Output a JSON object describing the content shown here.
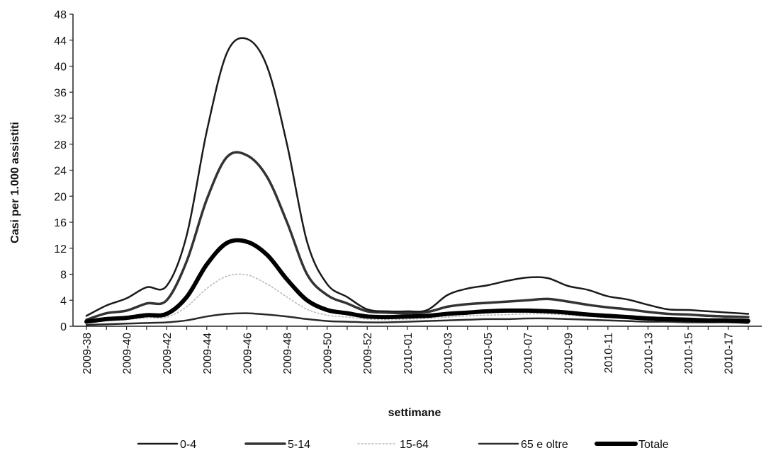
{
  "chart_data": {
    "type": "line",
    "xlabel": "settimane",
    "ylabel": "Casi per 1.000 assistiti",
    "ylim": [
      0,
      48
    ],
    "y_ticks": [
      "0",
      "4",
      "8",
      "12",
      "16",
      "20",
      "24",
      "28",
      "32",
      "36",
      "40",
      "44",
      "48"
    ],
    "grid": false,
    "legend_position": "bottom",
    "x": [
      "2009-38",
      "2009-39",
      "2009-40",
      "2009-41",
      "2009-42",
      "2009-43",
      "2009-44",
      "2009-45",
      "2009-46",
      "2009-47",
      "2009-48",
      "2009-49",
      "2009-50",
      "2009-51",
      "2009-52",
      "2009-53",
      "2010-01",
      "2010-02",
      "2010-03",
      "2010-04",
      "2010-05",
      "2010-06",
      "2010-07",
      "2010-08",
      "2010-09",
      "2010-10",
      "2010-11",
      "2010-12",
      "2010-13",
      "2010-14",
      "2010-15",
      "2010-16",
      "2010-17",
      "2010-18"
    ],
    "x_tick_labels": [
      "2009-38",
      "2009-40",
      "2009-42",
      "2009-44",
      "2009-46",
      "2009-48",
      "2009-50",
      "2009-52",
      "2010-01",
      "2010-03",
      "2010-05",
      "2010-07",
      "2010-09",
      "2010-11",
      "2010-13",
      "2010-15",
      "2010-17"
    ],
    "series": [
      {
        "name": "0-4",
        "color": "#1a1a1a",
        "width": 2.5,
        "dash": "",
        "values": [
          1.6,
          3.2,
          4.3,
          6.0,
          6.2,
          14.0,
          30.0,
          42.0,
          44.2,
          40.0,
          28.0,
          13.0,
          6.5,
          4.5,
          2.6,
          2.3,
          2.3,
          2.5,
          4.8,
          5.8,
          6.3,
          7.0,
          7.5,
          7.4,
          6.2,
          5.6,
          4.6,
          4.1,
          3.3,
          2.6,
          2.5,
          2.3,
          2.1,
          1.9
        ]
      },
      {
        "name": "5-14",
        "color": "#333333",
        "width": 3.5,
        "dash": "",
        "values": [
          1.0,
          2.0,
          2.4,
          3.5,
          4.0,
          10.0,
          19.5,
          26.0,
          26.3,
          23.0,
          16.0,
          8.0,
          4.8,
          3.5,
          2.3,
          2.1,
          2.0,
          2.2,
          3.0,
          3.4,
          3.6,
          3.8,
          4.0,
          4.2,
          3.8,
          3.3,
          2.9,
          2.6,
          2.2,
          1.9,
          1.8,
          1.6,
          1.5,
          1.4
        ]
      },
      {
        "name": "15-64",
        "color": "#b8b8b8",
        "width": 1.5,
        "dash": "2 3",
        "values": [
          0.5,
          0.8,
          1.0,
          1.3,
          1.4,
          3.0,
          5.8,
          7.7,
          7.9,
          6.5,
          4.5,
          2.6,
          1.7,
          1.4,
          1.1,
          1.0,
          1.1,
          1.2,
          1.4,
          1.6,
          1.7,
          1.8,
          1.9,
          1.9,
          1.7,
          1.5,
          1.3,
          1.2,
          1.0,
          0.9,
          0.9,
          0.8,
          0.8,
          0.7
        ]
      },
      {
        "name": "65 e oltre",
        "color": "#2a2a2a",
        "width": 2.5,
        "dash": "",
        "values": [
          0.2,
          0.3,
          0.4,
          0.5,
          0.6,
          0.9,
          1.5,
          1.9,
          2.0,
          1.8,
          1.5,
          1.1,
          0.8,
          0.7,
          0.6,
          0.6,
          0.7,
          0.8,
          0.9,
          1.0,
          1.1,
          1.1,
          1.2,
          1.2,
          1.1,
          1.0,
          0.9,
          0.8,
          0.7,
          0.7,
          0.6,
          0.6,
          0.6,
          0.5
        ]
      },
      {
        "name": "Totale",
        "color": "#000000",
        "width": 6,
        "dash": "",
        "values": [
          0.7,
          1.1,
          1.3,
          1.7,
          1.9,
          4.5,
          9.5,
          12.8,
          13.0,
          11.0,
          7.2,
          4.0,
          2.5,
          2.0,
          1.5,
          1.4,
          1.5,
          1.6,
          1.9,
          2.1,
          2.3,
          2.4,
          2.4,
          2.3,
          2.1,
          1.8,
          1.6,
          1.4,
          1.2,
          1.1,
          1.0,
          0.9,
          0.9,
          0.8
        ]
      }
    ]
  }
}
